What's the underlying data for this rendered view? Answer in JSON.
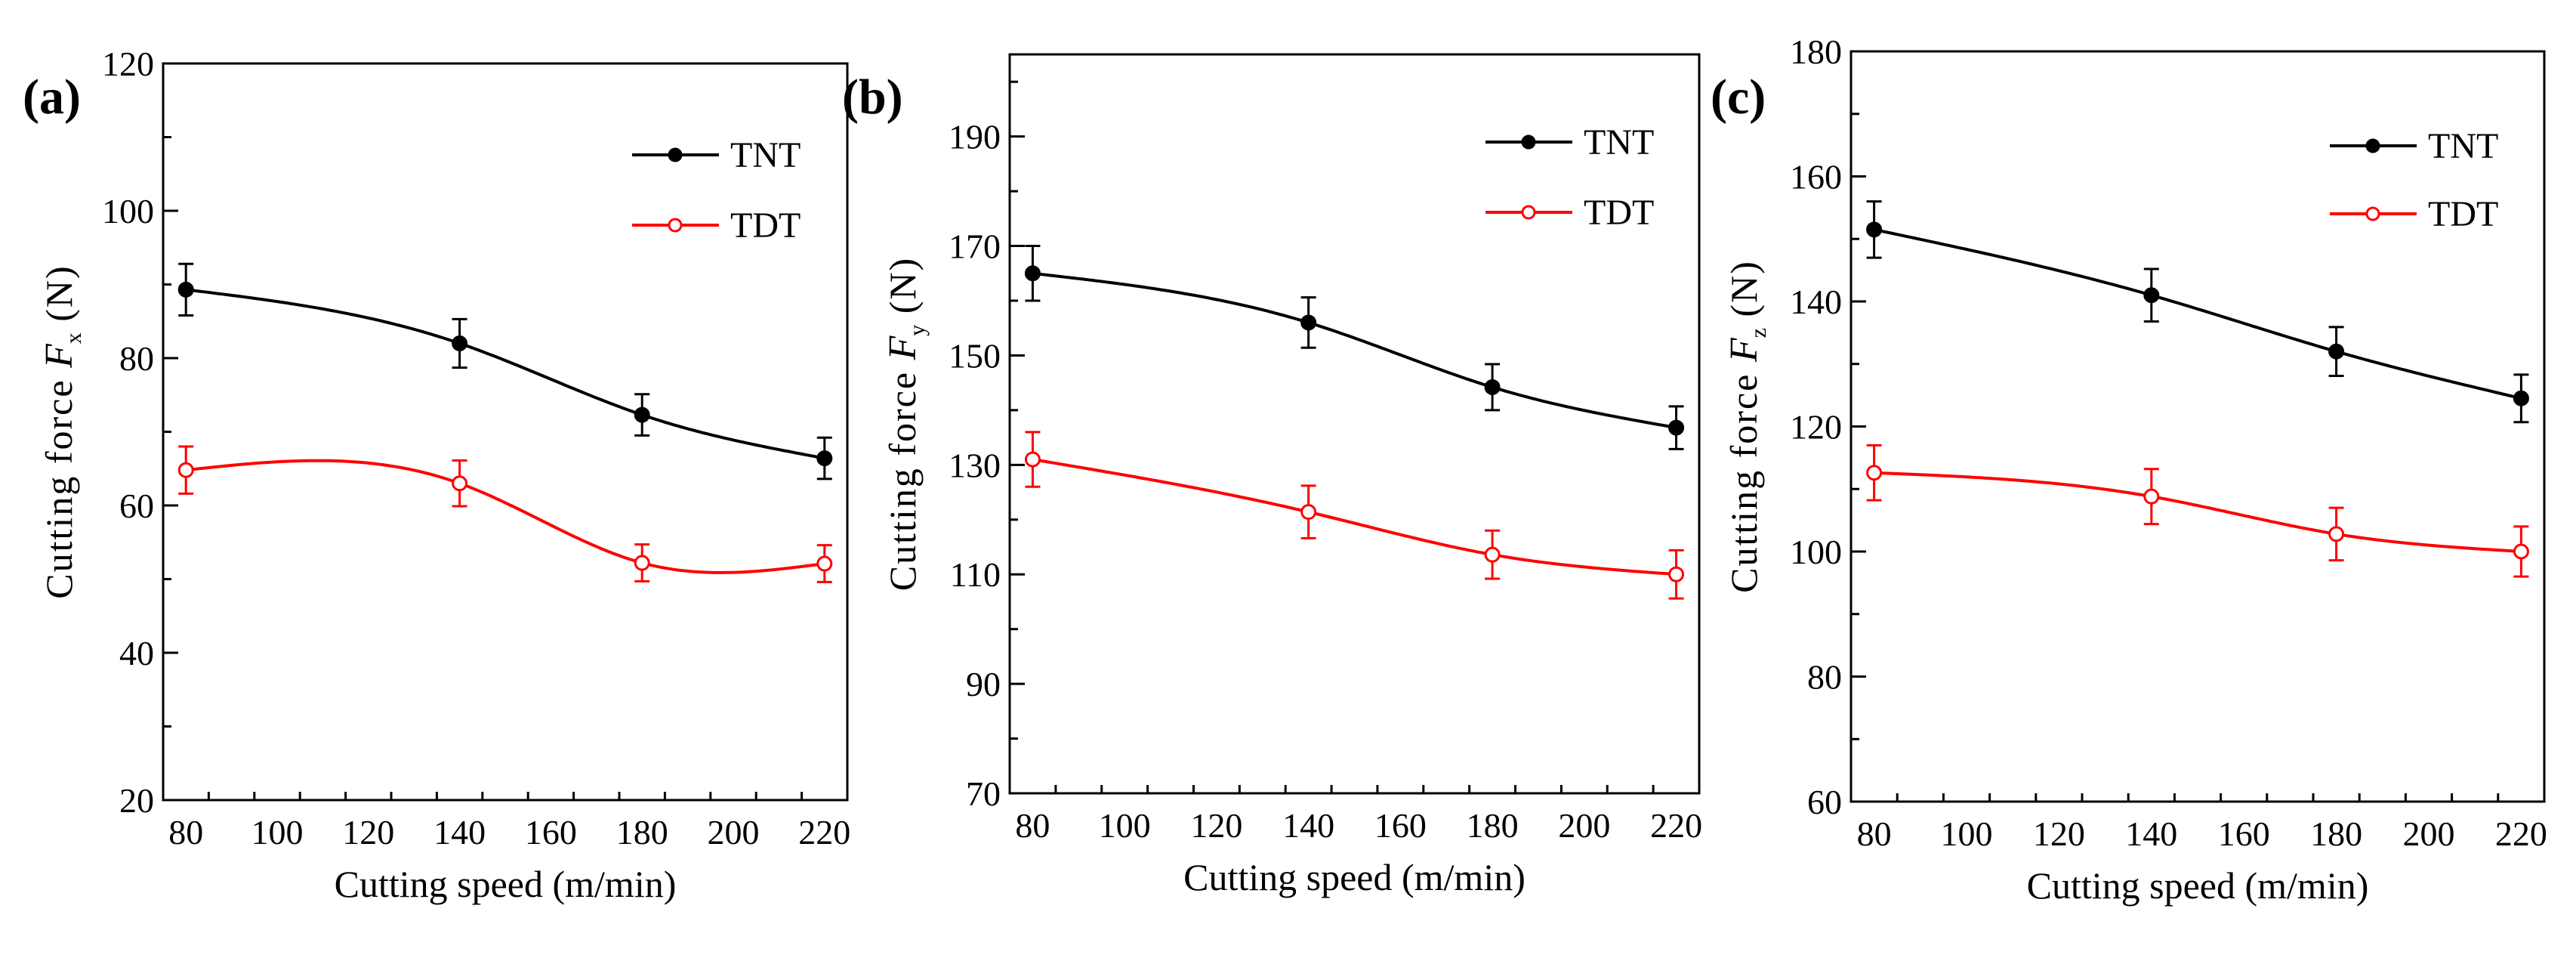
{
  "colors": {
    "tnt": "#000000",
    "tdt": "#ff0000",
    "axis": "#000000"
  },
  "chart_data": [
    {
      "type": "line",
      "panel_label": "(a)",
      "xlabel": "Cutting speed (m/min)",
      "ylabel_prefix": "Cutting force ",
      "ylabel_var": "F",
      "ylabel_sub": "x",
      "ylabel_suffix": " (N)",
      "xlim": [
        75,
        225
      ],
      "ylim": [
        20,
        120
      ],
      "xticks": [
        80,
        100,
        120,
        140,
        160,
        180,
        200,
        220
      ],
      "yticks": [
        20,
        40,
        60,
        80,
        100,
        120
      ],
      "series": [
        {
          "name": "TNT",
          "marker": "filled",
          "x": [
            80,
            140,
            180,
            220
          ],
          "y": [
            89.3,
            82.0,
            72.3,
            66.4
          ],
          "err": [
            3.5,
            3.3,
            2.8,
            2.8
          ]
        },
        {
          "name": "TDT",
          "marker": "open",
          "x": [
            80,
            140,
            180,
            220
          ],
          "y": [
            64.8,
            63.0,
            52.2,
            52.1
          ],
          "err": [
            3.2,
            3.1,
            2.5,
            2.5
          ]
        }
      ]
    },
    {
      "type": "line",
      "panel_label": "(b)",
      "xlabel": "Cutting speed (m/min)",
      "ylabel_prefix": "Cutting force ",
      "ylabel_var": "F",
      "ylabel_sub": "y",
      "ylabel_suffix": " (N)",
      "xlim": [
        75,
        225
      ],
      "ylim": [
        70,
        205
      ],
      "xticks": [
        80,
        100,
        120,
        140,
        160,
        180,
        200,
        220
      ],
      "yticks": [
        70,
        90,
        110,
        130,
        150,
        170,
        190
      ],
      "series": [
        {
          "name": "TNT",
          "marker": "filled",
          "x": [
            80,
            140,
            180,
            220
          ],
          "y": [
            165.0,
            156.0,
            144.2,
            136.8
          ],
          "err": [
            5.0,
            4.6,
            4.2,
            3.9
          ]
        },
        {
          "name": "TDT",
          "marker": "open",
          "x": [
            80,
            140,
            180,
            220
          ],
          "y": [
            131.0,
            121.4,
            113.6,
            110.0
          ],
          "err": [
            5.0,
            4.8,
            4.4,
            4.4
          ]
        }
      ]
    },
    {
      "type": "line",
      "panel_label": "(c)",
      "xlabel": "Cutting speed (m/min)",
      "ylabel_prefix": "Cutting force ",
      "ylabel_var": "F",
      "ylabel_sub": "z",
      "ylabel_suffix": " (N)",
      "xlim": [
        75,
        225
      ],
      "ylim": [
        60,
        180
      ],
      "xticks": [
        80,
        100,
        120,
        140,
        160,
        180,
        200,
        220
      ],
      "yticks": [
        60,
        80,
        100,
        120,
        140,
        160,
        180
      ],
      "series": [
        {
          "name": "TNT",
          "marker": "filled",
          "x": [
            80,
            140,
            180,
            220
          ],
          "y": [
            151.5,
            141.0,
            132.0,
            124.5
          ],
          "err": [
            4.5,
            4.2,
            3.9,
            3.8
          ]
        },
        {
          "name": "TDT",
          "marker": "open",
          "x": [
            80,
            140,
            180,
            220
          ],
          "y": [
            112.6,
            108.8,
            102.8,
            100.0
          ],
          "err": [
            4.4,
            4.4,
            4.2,
            4.0
          ]
        }
      ]
    }
  ]
}
